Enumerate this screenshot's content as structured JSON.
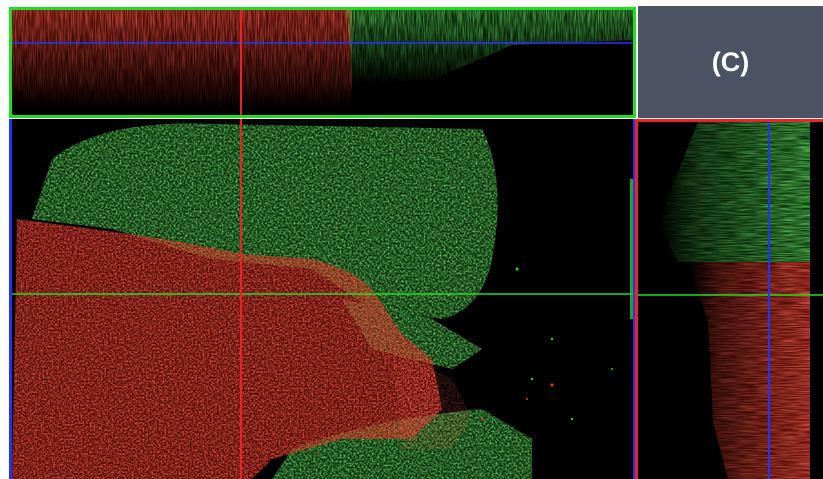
{
  "panel_label": "(C)",
  "colors": {
    "red_channel": "#ff2a1a",
    "green_channel": "#2ecc2e",
    "background": "#000000",
    "label_box": "#4a5263",
    "crosshair_red": "#ee2222",
    "crosshair_green": "#22dd22",
    "crosshair_blue": "#2233ff"
  }
}
